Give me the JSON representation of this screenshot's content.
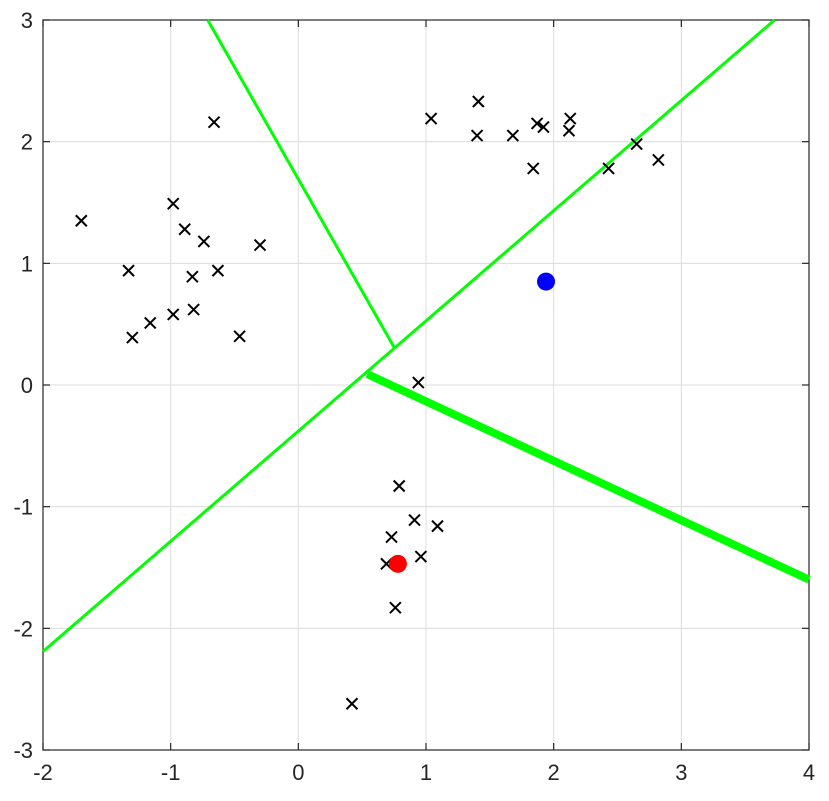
{
  "chart_data": {
    "type": "scatter",
    "title": "",
    "xlabel": "",
    "ylabel": "",
    "xlim": [
      -2,
      4
    ],
    "ylim": [
      -3,
      3
    ],
    "grid": true,
    "x_ticks": [
      -2,
      -1,
      0,
      1,
      2,
      3,
      4
    ],
    "y_ticks": [
      -3,
      -2,
      -1,
      0,
      1,
      2,
      3
    ],
    "x_tick_labels": [
      "-2",
      "-1",
      "0",
      "1",
      "2",
      "3",
      "4"
    ],
    "y_tick_labels": [
      "-3",
      "-2",
      "-1",
      "0",
      "1",
      "2",
      "3"
    ],
    "colors": {
      "markers": "#000000",
      "lines": "#00ff00",
      "grid": "#dcdcdc",
      "axis": "#262626",
      "centroid_blue": "#0000ff",
      "centroid_red": "#ff0000"
    },
    "series": [
      {
        "marker": "x",
        "color": "#000000",
        "points": [
          [
            -1.7,
            1.35
          ],
          [
            -0.66,
            2.16
          ],
          [
            -0.98,
            1.49
          ],
          [
            -0.89,
            1.28
          ],
          [
            -0.74,
            1.18
          ],
          [
            -0.3,
            1.15
          ],
          [
            -1.33,
            0.94
          ],
          [
            -0.63,
            0.94
          ],
          [
            -0.83,
            0.89
          ],
          [
            -0.98,
            0.58
          ],
          [
            -0.82,
            0.62
          ],
          [
            -1.16,
            0.51
          ],
          [
            -1.3,
            0.39
          ],
          [
            -0.46,
            0.4
          ],
          [
            1.04,
            2.19
          ],
          [
            1.41,
            2.33
          ],
          [
            1.4,
            2.05
          ],
          [
            1.68,
            2.05
          ],
          [
            1.87,
            2.15
          ],
          [
            1.92,
            2.12
          ],
          [
            2.13,
            2.19
          ],
          [
            2.12,
            2.09
          ],
          [
            1.84,
            1.78
          ],
          [
            2.65,
            1.98
          ],
          [
            2.43,
            1.78
          ],
          [
            2.82,
            1.85
          ],
          [
            0.94,
            0.02
          ],
          [
            0.79,
            -0.83
          ],
          [
            0.91,
            -1.11
          ],
          [
            1.09,
            -1.16
          ],
          [
            0.73,
            -1.25
          ],
          [
            0.96,
            -1.41
          ],
          [
            0.69,
            -1.47
          ],
          [
            0.76,
            -1.83
          ],
          [
            0.42,
            -2.62
          ]
        ]
      },
      {
        "name": "",
        "marker": "filled-circle",
        "color": "#0000ff",
        "points": [
          [
            1.94,
            0.85
          ]
        ]
      },
      {
        "name": "",
        "marker": "filled-circle",
        "color": "#ff0000",
        "points": [
          [
            0.78,
            -1.47
          ]
        ]
      }
    ],
    "lines": [
      {
        "color": "#00ff00",
        "weight": "thin",
        "points": [
          [
            -2,
            -2.19
          ],
          [
            3.73,
            3.0
          ]
        ]
      },
      {
        "color": "#00ff00",
        "weight": "thin",
        "points": [
          [
            -0.71,
            3.0
          ],
          [
            0.75,
            0.31
          ]
        ]
      },
      {
        "color": "#00ff00",
        "weight": "thick",
        "points": [
          [
            0.54,
            0.09
          ],
          [
            4,
            -1.6
          ]
        ]
      }
    ]
  }
}
